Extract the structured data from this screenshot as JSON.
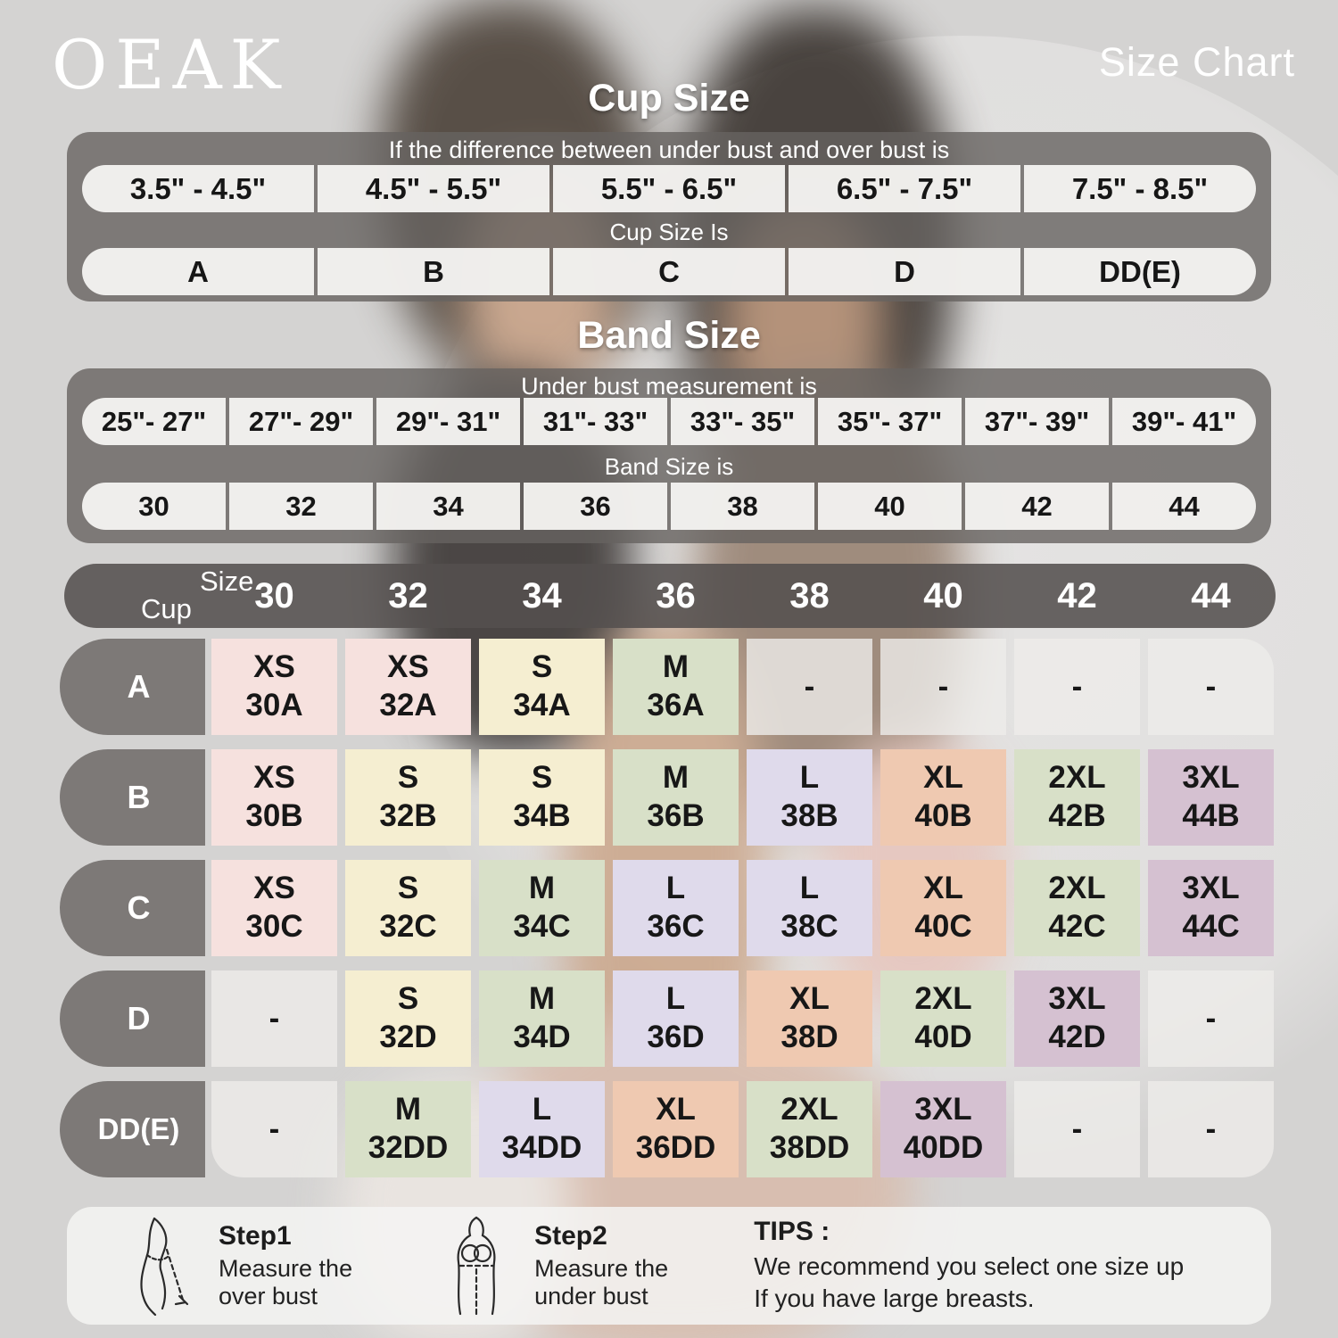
{
  "brand": "OEAK",
  "page_title": "Size Chart",
  "colors": {
    "bar": "rgba(103,99,96,0.80)",
    "bardark": "rgba(84,80,78,0.88)",
    "cellwhite": "rgba(245,244,242,0.95)",
    "footer": "rgba(245,244,243,0.85)",
    "pink": "#f6e1de",
    "cream": "#f5eed1",
    "green": "#d8e0c8",
    "lavender": "#dfdaeb",
    "peach": "#efc9b1",
    "mauve": "#d5c1d1",
    "dash": "rgba(238,236,234,0.80)"
  },
  "cup_section": {
    "title": "Cup Size",
    "header": "If the  difference between under bust and over bust is",
    "ranges": [
      "3.5\" -  4.5\"",
      "4.5\" -  5.5\"",
      "5.5\" -  6.5\"",
      "6.5\" -  7.5\"",
      "7.5\" -  8.5\""
    ],
    "mid_label": "Cup Size Is",
    "cups": [
      "A",
      "B",
      "C",
      "D",
      "DD(E)"
    ]
  },
  "band_section": {
    "title": "Band Size",
    "header": "Under bust measurement is",
    "ranges": [
      "25\"- 27\"",
      "27\"- 29\"",
      "29\"- 31\"",
      "31\"- 33\"",
      "33\"- 35\"",
      "35\"- 37\"",
      "37\"- 39\"",
      "39\"- 41\""
    ],
    "mid_label": "Band Size is",
    "bands": [
      "30",
      "32",
      "34",
      "36",
      "38",
      "40",
      "42",
      "44"
    ]
  },
  "matrix": {
    "corner": {
      "size_label": "Size",
      "cup_label": "Cup"
    },
    "columns": [
      "30",
      "32",
      "34",
      "36",
      "38",
      "40",
      "42",
      "44"
    ],
    "rows": [
      {
        "cup": "A",
        "cells": [
          {
            "size": "XS",
            "code": "30A",
            "color": "pink"
          },
          {
            "size": "XS",
            "code": "32A",
            "color": "pink"
          },
          {
            "size": "S",
            "code": "34A",
            "color": "cream"
          },
          {
            "size": "M",
            "code": "36A",
            "color": "green"
          },
          {
            "size": "-",
            "code": "",
            "color": "dash"
          },
          {
            "size": "-",
            "code": "",
            "color": "dash"
          },
          {
            "size": "-",
            "code": "",
            "color": "dash"
          },
          {
            "size": "-",
            "code": "",
            "color": "dash"
          }
        ]
      },
      {
        "cup": "B",
        "cells": [
          {
            "size": "XS",
            "code": "30B",
            "color": "pink"
          },
          {
            "size": "S",
            "code": "32B",
            "color": "cream"
          },
          {
            "size": "S",
            "code": "34B",
            "color": "cream"
          },
          {
            "size": "M",
            "code": "36B",
            "color": "green"
          },
          {
            "size": "L",
            "code": "38B",
            "color": "lavender"
          },
          {
            "size": "XL",
            "code": "40B",
            "color": "peach"
          },
          {
            "size": "2XL",
            "code": "42B",
            "color": "green"
          },
          {
            "size": "3XL",
            "code": "44B",
            "color": "mauve"
          }
        ]
      },
      {
        "cup": "C",
        "cells": [
          {
            "size": "XS",
            "code": "30C",
            "color": "pink"
          },
          {
            "size": "S",
            "code": "32C",
            "color": "cream"
          },
          {
            "size": "M",
            "code": "34C",
            "color": "green"
          },
          {
            "size": "L",
            "code": "36C",
            "color": "lavender"
          },
          {
            "size": "L",
            "code": "38C",
            "color": "lavender"
          },
          {
            "size": "XL",
            "code": "40C",
            "color": "peach"
          },
          {
            "size": "2XL",
            "code": "42C",
            "color": "green"
          },
          {
            "size": "3XL",
            "code": "44C",
            "color": "mauve"
          }
        ]
      },
      {
        "cup": "D",
        "cells": [
          {
            "size": "-",
            "code": "",
            "color": "dash"
          },
          {
            "size": "S",
            "code": "32D",
            "color": "cream"
          },
          {
            "size": "M",
            "code": "34D",
            "color": "green"
          },
          {
            "size": "L",
            "code": "36D",
            "color": "lavender"
          },
          {
            "size": "XL",
            "code": "38D",
            "color": "peach"
          },
          {
            "size": "2XL",
            "code": "40D",
            "color": "green"
          },
          {
            "size": "3XL",
            "code": "42D",
            "color": "mauve"
          },
          {
            "size": "-",
            "code": "",
            "color": "dash"
          }
        ]
      },
      {
        "cup": "DD(E)",
        "cells": [
          {
            "size": "-",
            "code": "",
            "color": "dash"
          },
          {
            "size": "M",
            "code": "32DD",
            "color": "green"
          },
          {
            "size": "L",
            "code": "34DD",
            "color": "lavender"
          },
          {
            "size": "XL",
            "code": "36DD",
            "color": "peach"
          },
          {
            "size": "2XL",
            "code": "38DD",
            "color": "green"
          },
          {
            "size": "3XL",
            "code": "40DD",
            "color": "mauve"
          },
          {
            "size": "-",
            "code": "",
            "color": "dash"
          },
          {
            "size": "-",
            "code": "",
            "color": "dash"
          }
        ]
      }
    ]
  },
  "footer": {
    "step1": {
      "title": "Step1",
      "line1": "Measure the",
      "line2": "over bust"
    },
    "step2": {
      "title": "Step2",
      "line1": "Measure the",
      "line2": "under bust"
    },
    "tips": {
      "title": "TIPS :",
      "line1": "We recommend you select one size up",
      "line2": "If you have large breasts."
    }
  }
}
